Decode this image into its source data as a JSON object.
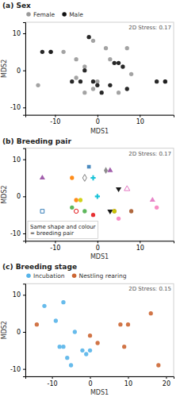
{
  "chart_data": [
    {
      "type": "scatter",
      "title": "(a) Sex",
      "x_label": "MDS1",
      "y_label": "MDS2",
      "xlim": [
        -17,
        18
      ],
      "ylim": [
        -12,
        13
      ],
      "xticks": [
        -10,
        0,
        10
      ],
      "yticks": [
        -10,
        0,
        10
      ],
      "grid": false,
      "legend": "top",
      "annotations": [
        "2D Stress: 0.17"
      ],
      "series": [
        {
          "name": "Female",
          "color": "#999999",
          "marker": "circle",
          "x": [
            -14,
            -11,
            -8,
            -5,
            -5,
            -3,
            -3,
            -1,
            -1,
            0,
            2,
            3,
            5,
            7,
            8,
            16
          ],
          "y": [
            -4,
            5,
            5,
            3,
            -2,
            1,
            -6,
            -5,
            8,
            -3,
            6,
            3,
            -6,
            6,
            -1,
            -3
          ]
        },
        {
          "name": "Male",
          "color": "#111111",
          "marker": "circle",
          "x": [
            -13,
            -11,
            -6,
            -4,
            -3,
            -2,
            -1,
            0,
            1,
            3,
            4,
            5,
            6,
            7,
            14,
            16
          ],
          "y": [
            5,
            5,
            -3,
            -3,
            0,
            9,
            -3,
            -4,
            -6,
            -4,
            2,
            2,
            1,
            -5,
            -3,
            -3
          ]
        }
      ]
    },
    {
      "type": "scatter",
      "title": "(b) Breeding pair",
      "x_label": "MDS1",
      "y_label": "MDS2",
      "xlim": [
        -17,
        18
      ],
      "ylim": [
        -12,
        13
      ],
      "xticks": [
        -10,
        0,
        10
      ],
      "yticks": [
        -10,
        0,
        10
      ],
      "grid": false,
      "annotations": [
        "2D Stress: 0.17"
      ],
      "note": [
        "Same shape and colour",
        "= breeding pair"
      ],
      "series": [
        {
          "color": "#e41a1c",
          "marker": "circle-open",
          "x": [
            -5
          ],
          "y": [
            -4
          ]
        },
        {
          "color": "#e41a1c",
          "marker": "circle",
          "x": [
            -1
          ],
          "y": [
            -5
          ]
        },
        {
          "color": "#377eb8",
          "marker": "square-open",
          "x": [
            -13
          ],
          "y": [
            -4
          ]
        },
        {
          "color": "#377eb8",
          "marker": "square",
          "x": [
            -2
          ],
          "y": [
            8
          ]
        },
        {
          "color": "#4daf4a",
          "marker": "circle",
          "x": [
            -6
          ],
          "y": [
            -3
          ]
        },
        {
          "color": "#4daf4a",
          "marker": "circle",
          "x": [
            -3
          ],
          "y": [
            -4
          ]
        },
        {
          "color": "#ff7f00",
          "marker": "circle",
          "x": [
            -6
          ],
          "y": [
            5
          ]
        },
        {
          "color": "#ff7f00",
          "marker": "circle",
          "x": [
            -5
          ],
          "y": [
            -1
          ]
        },
        {
          "color": "#984ea3",
          "marker": "triangle-up",
          "x": [
            -13
          ],
          "y": [
            5
          ]
        },
        {
          "color": "#984ea3",
          "marker": "triangle-up",
          "x": [
            3
          ],
          "y": [
            7
          ]
        },
        {
          "color": "#a65628",
          "marker": "circle",
          "x": [
            4
          ],
          "y": [
            -4
          ]
        },
        {
          "color": "#a65628",
          "marker": "circle",
          "x": [
            8
          ],
          "y": [
            -4
          ]
        },
        {
          "color": "#f781bf",
          "marker": "circle",
          "x": [
            5
          ],
          "y": [
            -6
          ]
        },
        {
          "color": "#f781bf",
          "marker": "circle",
          "x": [
            14
          ],
          "y": [
            -3
          ]
        },
        {
          "color": "#000000",
          "marker": "triangle-down",
          "x": [
            5
          ],
          "y": [
            2
          ]
        },
        {
          "color": "#000000",
          "marker": "triangle-down",
          "x": [
            3
          ],
          "y": [
            -4
          ]
        },
        {
          "color": "#00bcd4",
          "marker": "plus",
          "x": [
            -1
          ],
          "y": [
            5
          ]
        },
        {
          "color": "#00bcd4",
          "marker": "plus",
          "x": [
            0
          ],
          "y": [
            0
          ]
        },
        {
          "color": "#cdcd00",
          "marker": "circle",
          "x": [
            -4
          ],
          "y": [
            -1
          ]
        },
        {
          "color": "#cdcd00",
          "marker": "circle",
          "x": [
            4
          ],
          "y": [
            -4
          ]
        },
        {
          "color": "#7f7f7f",
          "marker": "diamond-open",
          "x": [
            -3
          ],
          "y": [
            5
          ]
        },
        {
          "color": "#7f7f7f",
          "marker": "diamond",
          "x": [
            2
          ],
          "y": [
            7
          ]
        },
        {
          "color": "#e377c2",
          "marker": "triangle-up-open",
          "x": [
            7
          ],
          "y": [
            2
          ]
        },
        {
          "color": "#e377c2",
          "marker": "triangle-up",
          "x": [
            13
          ],
          "y": [
            -1
          ]
        }
      ]
    },
    {
      "type": "scatter",
      "title": "(c) Breeding stage",
      "x_label": "MDS1",
      "y_label": "MDS2",
      "xlim": [
        -17,
        22
      ],
      "ylim": [
        -12,
        13
      ],
      "xticks": [
        -10,
        0,
        10,
        20
      ],
      "yticks": [
        -10,
        0,
        10
      ],
      "grid": false,
      "legend": "top",
      "annotations": [
        "2D Stress: 0.15"
      ],
      "series": [
        {
          "name": "Incubation",
          "color": "#56b4e9",
          "marker": "circle",
          "x": [
            -12,
            -9,
            -8,
            -7,
            -7,
            -6,
            -5,
            -4,
            -2,
            -1,
            0
          ],
          "y": [
            7,
            3,
            -4,
            -4,
            8,
            -7,
            -9,
            0,
            -5,
            -6,
            -5
          ]
        },
        {
          "name": "Nestling rearing",
          "color": "#cc6633",
          "marker": "circle",
          "x": [
            -14,
            0,
            2,
            8,
            9,
            10,
            16,
            18
          ],
          "y": [
            2,
            -1,
            -3,
            2,
            -4,
            2,
            5,
            -9
          ]
        }
      ]
    }
  ]
}
